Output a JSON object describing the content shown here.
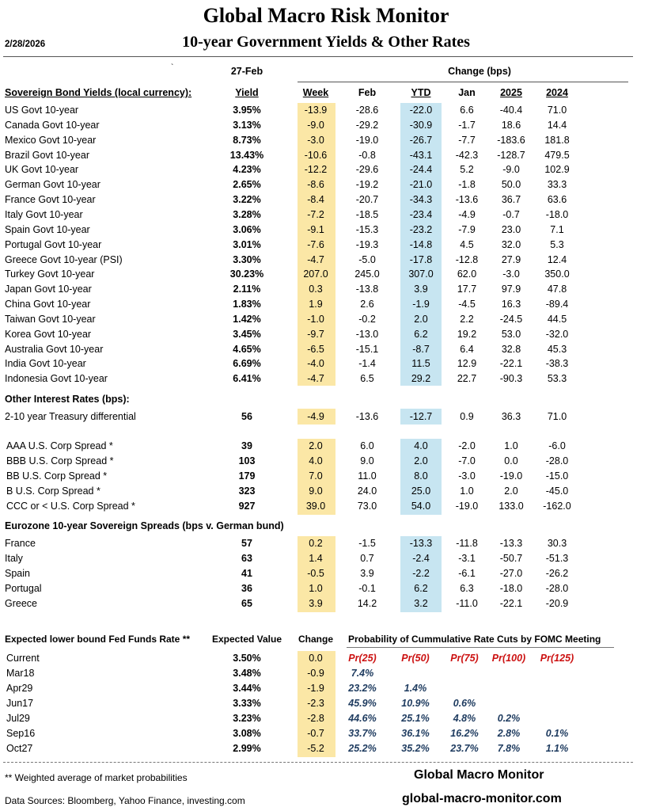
{
  "header": {
    "title": "Global Macro Risk Monitor",
    "subtitle": "10-year Government Yields & Other Rates",
    "date": "2/28/2026",
    "tick": "`",
    "date_col": "27-Feb",
    "change_label": "Change (bps)"
  },
  "columns": {
    "section_label": "Sovereign Bond Yields (local currency):",
    "yield": "Yield",
    "week": "Week",
    "feb": "Feb",
    "ytd": "YTD",
    "jan": "Jan",
    "y2025": "2025",
    "y2024": "2024"
  },
  "sovereign": [
    {
      "name": "US Govt 10-year",
      "val": "3.95%",
      "week": "-13.9",
      "feb": "-28.6",
      "ytd": "-22.0",
      "jan": "6.6",
      "y2025": "-40.4",
      "y2024": "71.0"
    },
    {
      "name": "Canada Govt 10-year",
      "val": "3.13%",
      "week": "-9.0",
      "feb": "-29.2",
      "ytd": "-30.9",
      "jan": "-1.7",
      "y2025": "18.6",
      "y2024": "14.4"
    },
    {
      "name": "Mexico Govt 10-year",
      "val": "8.73%",
      "week": "-3.0",
      "feb": "-19.0",
      "ytd": "-26.7",
      "jan": "-7.7",
      "y2025": "-183.6",
      "y2024": "181.8"
    },
    {
      "name": "Brazil Govt 10-year",
      "val": "13.43%",
      "week": "-10.6",
      "feb": "-0.8",
      "ytd": "-43.1",
      "jan": "-42.3",
      "y2025": "-128.7",
      "y2024": "479.5"
    },
    {
      "name": "UK Govt 10-year",
      "val": "4.23%",
      "week": "-12.2",
      "feb": "-29.6",
      "ytd": "-24.4",
      "jan": "5.2",
      "y2025": "-9.0",
      "y2024": "102.9"
    },
    {
      "name": "German Govt 10-year",
      "val": "2.65%",
      "week": "-8.6",
      "feb": "-19.2",
      "ytd": "-21.0",
      "jan": "-1.8",
      "y2025": "50.0",
      "y2024": "33.3"
    },
    {
      "name": "France Govt 10-year",
      "val": "3.22%",
      "week": "-8.4",
      "feb": "-20.7",
      "ytd": "-34.3",
      "jan": "-13.6",
      "y2025": "36.7",
      "y2024": "63.6"
    },
    {
      "name": "Italy Govt 10-year",
      "val": "3.28%",
      "week": "-7.2",
      "feb": "-18.5",
      "ytd": "-23.4",
      "jan": "-4.9",
      "y2025": "-0.7",
      "y2024": "-18.0"
    },
    {
      "name": "Spain Govt 10-year",
      "val": "3.06%",
      "week": "-9.1",
      "feb": "-15.3",
      "ytd": "-23.2",
      "jan": "-7.9",
      "y2025": "23.0",
      "y2024": "7.1"
    },
    {
      "name": "Portugal Govt 10-year",
      "val": "3.01%",
      "week": "-7.6",
      "feb": "-19.3",
      "ytd": "-14.8",
      "jan": "4.5",
      "y2025": "32.0",
      "y2024": "5.3"
    },
    {
      "name": "Greece Govt 10-year (PSI)",
      "val": "3.30%",
      "week": "-4.7",
      "feb": "-5.0",
      "ytd": "-17.8",
      "jan": "-12.8",
      "y2025": "27.9",
      "y2024": "12.4"
    },
    {
      "name": "Turkey Govt 10-year",
      "val": "30.23%",
      "week": "207.0",
      "feb": "245.0",
      "ytd": "307.0",
      "jan": "62.0",
      "y2025": "-3.0",
      "y2024": "350.0"
    },
    {
      "name": "Japan Govt 10-year",
      "val": "2.11%",
      "week": "0.3",
      "feb": "-13.8",
      "ytd": "3.9",
      "jan": "17.7",
      "y2025": "97.9",
      "y2024": "47.8"
    },
    {
      "name": "China Govt 10-year",
      "val": "1.83%",
      "week": "1.9",
      "feb": "2.6",
      "ytd": "-1.9",
      "jan": "-4.5",
      "y2025": "16.3",
      "y2024": "-89.4"
    },
    {
      "name": "Taiwan Govt 10-year",
      "val": "1.42%",
      "week": "-1.0",
      "feb": "-0.2",
      "ytd": "2.0",
      "jan": "2.2",
      "y2025": "-24.5",
      "y2024": "44.5"
    },
    {
      "name": "Korea Govt 10-year",
      "val": "3.45%",
      "week": "-9.7",
      "feb": "-13.0",
      "ytd": "6.2",
      "jan": "19.2",
      "y2025": "53.0",
      "y2024": "-32.0"
    },
    {
      "name": "Australia Govt 10-year",
      "val": "4.65%",
      "week": "-6.5",
      "feb": "-15.1",
      "ytd": "-8.7",
      "jan": "6.4",
      "y2025": "32.8",
      "y2024": "45.3"
    },
    {
      "name": "India Govt 10-year",
      "val": "6.69%",
      "week": "-4.0",
      "feb": "-1.4",
      "ytd": "11.5",
      "jan": "12.9",
      "y2025": "-22.1",
      "y2024": "-38.3"
    },
    {
      "name": "Indonesia Govt 10-year",
      "val": "6.41%",
      "week": "-4.7",
      "feb": "6.5",
      "ytd": "29.2",
      "jan": "22.7",
      "y2025": "-90.3",
      "y2024": "53.3"
    }
  ],
  "other_label": "Other Interest Rates  (bps):",
  "treasury": [
    {
      "name": "2-10 year Treasury differential",
      "val": "56",
      "week": "-4.9",
      "feb": "-13.6",
      "ytd": "-12.7",
      "jan": "0.9",
      "y2025": "36.3",
      "y2024": "71.0"
    }
  ],
  "corp": [
    {
      "name": "AAA U.S. Corp Spread *",
      "val": "39",
      "week": "2.0",
      "feb": "6.0",
      "ytd": "4.0",
      "jan": "-2.0",
      "y2025": "1.0",
      "y2024": "-6.0"
    },
    {
      "name": "BBB U.S. Corp Spread *",
      "val": "103",
      "week": "4.0",
      "feb": "9.0",
      "ytd": "2.0",
      "jan": "-7.0",
      "y2025": "0.0",
      "y2024": "-28.0"
    },
    {
      "name": "BB U.S. Corp Spread *",
      "val": "179",
      "week": "7.0",
      "feb": "11.0",
      "ytd": "8.0",
      "jan": "-3.0",
      "y2025": "-19.0",
      "y2024": "-15.0"
    },
    {
      "name": "B U.S. Corp Spread *",
      "val": "323",
      "week": "9.0",
      "feb": "24.0",
      "ytd": "25.0",
      "jan": "1.0",
      "y2025": "2.0",
      "y2024": "-45.0"
    },
    {
      "name": "CCC or < U.S. Corp Spread *",
      "val": "927",
      "week": "39.0",
      "feb": "73.0",
      "ytd": "54.0",
      "jan": "-19.0",
      "y2025": "133.0",
      "y2024": "-162.0"
    }
  ],
  "euro_label": "Eurozone 10-year Sovereign Spreads (bps v. German bund)",
  "euro": [
    {
      "name": "France",
      "val": "57",
      "week": "0.2",
      "feb": "-1.5",
      "ytd": "-13.3",
      "jan": "-11.8",
      "y2025": "-13.3",
      "y2024": "30.3"
    },
    {
      "name": "Italy",
      "val": "63",
      "week": "1.4",
      "feb": "0.7",
      "ytd": "-2.4",
      "jan": "-3.1",
      "y2025": "-50.7",
      "y2024": "-51.3"
    },
    {
      "name": "Spain",
      "val": "41",
      "week": "-0.5",
      "feb": "3.9",
      "ytd": "-2.2",
      "jan": "-6.1",
      "y2025": "-27.0",
      "y2024": "-26.2"
    },
    {
      "name": "Portugal",
      "val": "36",
      "week": "1.0",
      "feb": "-0.1",
      "ytd": "6.2",
      "jan": "6.3",
      "y2025": "-18.0",
      "y2024": "-28.0"
    },
    {
      "name": "Greece",
      "val": "65",
      "week": "3.9",
      "feb": "14.2",
      "ytd": "3.2",
      "jan": "-11.0",
      "y2025": "-22.1",
      "y2024": "-20.9"
    }
  ],
  "fed": {
    "title": "Expected lower bound Fed Funds Rate **",
    "expected_label": "Expected Value",
    "change_label": "Change",
    "prob_label": "Probability of Cummulative Rate Cuts by FOMC Meeting",
    "rows": [
      {
        "name": "Current",
        "val": "3.50%",
        "chg": "0.0",
        "p": [
          "Pr(25)",
          "Pr(50)",
          "Pr(75)",
          "Pr(100)",
          "Pr(125)"
        ]
      },
      {
        "name": "Mar18",
        "val": "3.48%",
        "chg": "-0.9",
        "p": [
          "7.4%",
          "",
          "",
          "",
          ""
        ]
      },
      {
        "name": "Apr29",
        "val": "3.44%",
        "chg": "-1.9",
        "p": [
          "23.2%",
          "1.4%",
          "",
          "",
          ""
        ]
      },
      {
        "name": "Jun17",
        "val": "3.33%",
        "chg": "-2.3",
        "p": [
          "45.9%",
          "10.9%",
          "0.6%",
          "",
          ""
        ]
      },
      {
        "name": "Jul29",
        "val": "3.23%",
        "chg": "-2.8",
        "p": [
          "44.6%",
          "25.1%",
          "4.8%",
          "0.2%",
          ""
        ]
      },
      {
        "name": "Sep16",
        "val": "3.08%",
        "chg": "-0.7",
        "p": [
          "33.7%",
          "36.1%",
          "16.2%",
          "2.8%",
          "0.1%"
        ]
      },
      {
        "name": "Oct27",
        "val": "2.99%",
        "chg": "-5.2",
        "p": [
          "25.2%",
          "35.2%",
          "23.7%",
          "7.8%",
          "1.1%"
        ]
      }
    ]
  },
  "footer": {
    "note": "** Weighted average of market probabilities",
    "sources": "Data Sources:  Bloomberg,  Yahoo Finance, investing.com",
    "brand": "Global Macro Monitor",
    "url": "global-macro-monitor.com"
  }
}
